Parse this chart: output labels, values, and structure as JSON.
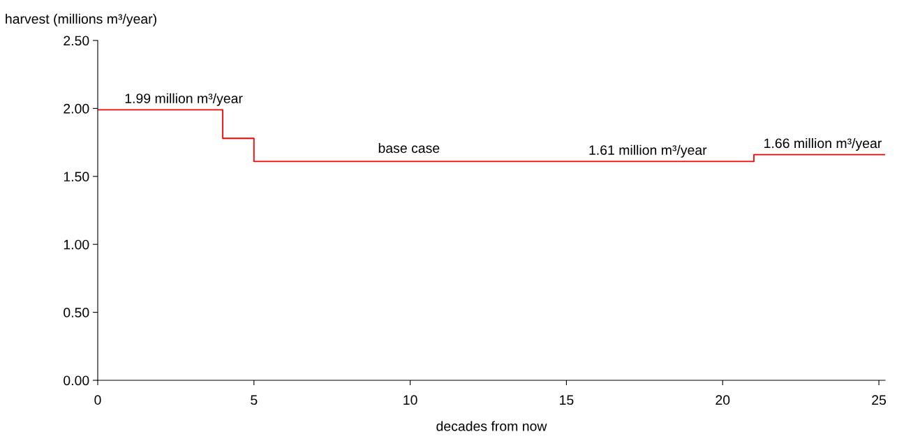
{
  "chart_data": {
    "type": "step",
    "xlabel": "decades from now",
    "ylabel": "harvest (millions m³/year)",
    "x": [
      0,
      4,
      5,
      21,
      25.2
    ],
    "series": [
      {
        "name": "base case",
        "color": "#ff0000",
        "values": [
          1.99,
          1.78,
          1.61,
          1.66,
          1.66
        ]
      }
    ],
    "xlim": [
      0,
      25.2
    ],
    "xticks": [
      0,
      5,
      10,
      15,
      20,
      25
    ],
    "ylim": [
      0,
      2.5
    ],
    "yticks": [
      {
        "value": 0,
        "label": "0.00"
      },
      {
        "value": 0.5,
        "label": "0.50"
      },
      {
        "value": 1,
        "label": "1.00"
      },
      {
        "value": 1.5,
        "label": "1.50"
      },
      {
        "value": 2,
        "label": "2.00"
      },
      {
        "value": 2.5,
        "label": "2.50"
      }
    ],
    "annotations": [
      {
        "text": "1.99 million m³/year",
        "x": 2.75,
        "y": 1.99
      },
      {
        "text": "1.61 million m³/year",
        "x": 17.6,
        "y": 1.61
      },
      {
        "text": "1.66 million m³/year",
        "x": 23.2,
        "y": 1.66
      }
    ],
    "grid": false,
    "legend": false,
    "marker": "none",
    "line_style": "solid"
  }
}
